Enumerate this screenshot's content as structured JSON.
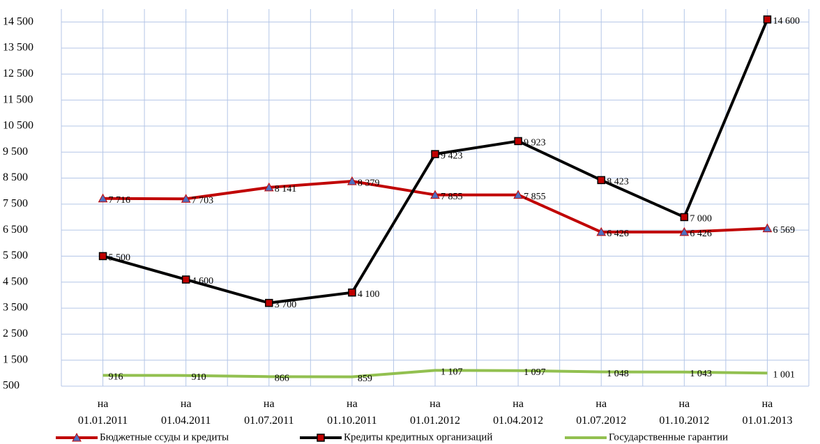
{
  "chart_data": {
    "type": "line",
    "categories": [
      "на\n01.01.2011",
      "на\n01.04.2011",
      "на\n01.07.2011",
      "на\n01.10.2011",
      "на\n01.01.2012",
      "на\n01.04.2012",
      "на\n01.07.2012",
      "на\n01.10.2012",
      "на\n01.01.2013"
    ],
    "series": [
      {
        "name": "Бюджетные ссуды и кредиты",
        "color": "#c00000",
        "marker": "triangle",
        "marker_color": "#4f6fbf",
        "values": [
          7716,
          7703,
          8141,
          8379,
          7855,
          7855,
          6426,
          6426,
          6569
        ],
        "value_labels": [
          "7 716",
          "7 703",
          "8 141",
          "8 379",
          "7 855",
          "7 855",
          "6 426",
          "6 426",
          "6 569"
        ]
      },
      {
        "name": "Кредиты кредитных  организаций",
        "color": "#000000",
        "marker": "square",
        "marker_color": "#c00000",
        "values": [
          5500,
          4600,
          3700,
          4100,
          9423,
          9923,
          8423,
          7000,
          14600
        ],
        "value_labels": [
          "5 500",
          "4 600",
          "3 700",
          "4 100",
          "9 423",
          "9 923",
          "8 423",
          "7 000",
          "14 600"
        ]
      },
      {
        "name": "Государственные гарантии",
        "color": "#92c050",
        "values": [
          916,
          910,
          866,
          859,
          1107,
          1097,
          1048,
          1043,
          1001
        ],
        "value_labels": [
          "916",
          "910",
          "866",
          "859",
          "1 107",
          "1 097",
          "1 048",
          "1 043",
          "1 001"
        ]
      }
    ],
    "ylim": [
      500,
      15000
    ],
    "yticks": [
      500,
      {
        "value": 1500,
        "label": "1 500"
      },
      {
        "value": 2500,
        "label": "2 500"
      },
      {
        "value": 3500,
        "label": "3 500"
      },
      {
        "value": 4500,
        "label": "4 500"
      },
      {
        "value": 5500,
        "label": "5 500"
      },
      {
        "value": 6500,
        "label": "6 500"
      },
      {
        "value": 7500,
        "label": "7 500"
      },
      {
        "value": 8500,
        "label": "8 500"
      },
      {
        "value": 9500,
        "label": "9 500"
      },
      {
        "value": 10500,
        "label": "10 500"
      },
      {
        "value": 11500,
        "label": "11 500"
      },
      {
        "value": 12500,
        "label": "12 500"
      },
      {
        "value": 13500,
        "label": "13 500"
      },
      {
        "value": 14500,
        "label": "14 500"
      }
    ],
    "grid": true,
    "legend": "bottom"
  }
}
